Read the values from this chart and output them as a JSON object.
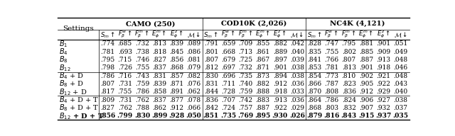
{
  "group_labels": [
    "CAMO (250)",
    "COD10K (2,026)",
    "NC4K (4,121)"
  ],
  "subheaders": [
    "$S_m\\uparrow$",
    "$F_\\beta^w\\uparrow$",
    "$F_\\beta^m\\uparrow$",
    "$E_\\phi^m\\uparrow$",
    "$E_\\phi^z\\uparrow$",
    "$\\mathcal{M}\\downarrow$"
  ],
  "row_groups": [
    {
      "rows": [
        {
          "label": "$B_1$",
          "bold": false,
          "data": [
            ".774",
            ".685",
            ".732",
            ".813",
            ".839",
            ".089",
            ".791",
            ".659",
            ".709",
            ".855",
            ".882",
            ".042",
            ".828",
            ".747",
            ".795",
            ".881",
            ".901",
            ".051"
          ]
        },
        {
          "label": "$B_4$",
          "bold": false,
          "data": [
            ".781",
            ".693",
            ".738",
            ".818",
            ".845",
            ".086",
            ".801",
            ".668",
            ".713",
            ".861",
            ".889",
            ".040",
            ".835",
            ".755",
            ".802",
            ".885",
            ".909",
            ".049"
          ]
        },
        {
          "label": "$B_8$",
          "bold": false,
          "data": [
            ".795",
            ".715",
            ".746",
            ".827",
            ".856",
            ".081",
            ".807",
            ".679",
            ".725",
            ".867",
            ".897",
            ".039",
            ".841",
            ".766",
            ".807",
            ".887",
            ".913",
            ".048"
          ]
        },
        {
          "label": "$B_{12}$",
          "bold": false,
          "data": [
            ".798",
            ".726",
            ".755",
            ".837",
            ".868",
            ".079",
            ".812",
            ".697",
            ".732",
            ".871",
            ".901",
            ".038",
            ".853",
            ".781",
            ".813",
            ".901",
            ".918",
            ".046"
          ]
        }
      ]
    },
    {
      "rows": [
        {
          "label": "$B_4$ + D",
          "bold": false,
          "data": [
            ".786",
            ".716",
            ".743",
            ".831",
            ".857",
            ".082",
            ".830",
            ".696",
            ".735",
            ".873",
            ".894",
            ".038",
            ".854",
            ".773",
            ".810",
            ".902",
            ".921",
            ".048"
          ]
        },
        {
          "label": "$B_8$ + D",
          "bold": false,
          "data": [
            ".807",
            ".731",
            ".759",
            ".839",
            ".871",
            ".076",
            ".831",
            ".711",
            ".740",
            ".882",
            ".912",
            ".036",
            ".866",
            ".787",
            ".823",
            ".905",
            ".922",
            ".043"
          ]
        },
        {
          "label": "$B_{12}$ + D",
          "bold": false,
          "data": [
            ".817",
            ".755",
            ".786",
            ".858",
            ".891",
            ".062",
            ".844",
            ".728",
            ".759",
            ".888",
            ".918",
            ".033",
            ".870",
            ".808",
            ".836",
            ".912",
            ".929",
            ".040"
          ]
        }
      ]
    },
    {
      "rows": [
        {
          "label": "$B_4$ + D + T",
          "bold": false,
          "data": [
            ".809",
            ".731",
            ".762",
            ".837",
            ".877",
            ".078",
            ".836",
            ".707",
            ".742",
            ".883",
            ".913",
            ".036",
            ".864",
            ".786",
            ".824",
            ".906",
            ".927",
            ".038"
          ]
        },
        {
          "label": "$B_8$ + D + T",
          "bold": false,
          "data": [
            ".827",
            ".762",
            ".788",
            ".862",
            ".912",
            ".066",
            ".842",
            ".724",
            ".757",
            ".887",
            ".922",
            ".029",
            ".868",
            ".803",
            ".832",
            ".907",
            ".932",
            ".037"
          ]
        },
        {
          "label": "$B_{12}$ + D + T",
          "bold": true,
          "data": [
            ".856",
            ".799",
            ".830",
            ".899",
            ".928",
            ".050",
            ".851",
            ".735",
            ".769",
            ".895",
            ".930",
            ".026",
            ".879",
            ".816",
            ".843",
            ".915",
            ".937",
            ".035"
          ]
        }
      ]
    }
  ],
  "header_fontsize": 7.2,
  "subheader_fontsize": 6.2,
  "data_fontsize": 6.5,
  "label_fontsize": 7.0,
  "settings_fontsize": 7.5
}
